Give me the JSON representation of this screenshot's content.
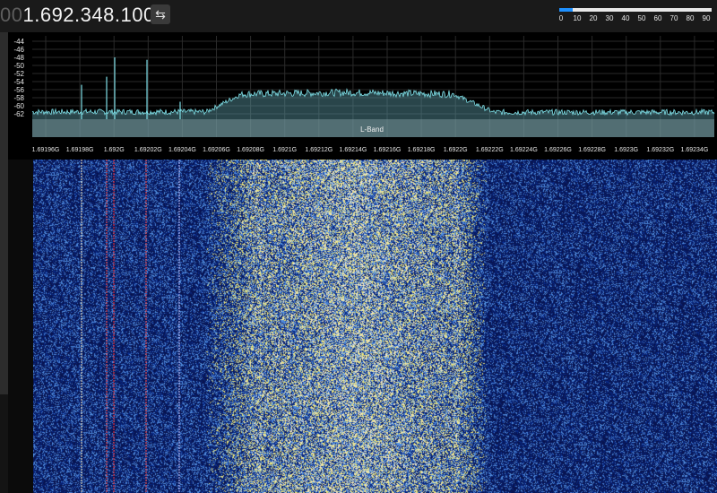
{
  "frequency": {
    "dim_digits": "00",
    "main_digits": "1.692.348.100"
  },
  "swap_button": {
    "glyph": "⇆",
    "icon": "swap-arrows-icon"
  },
  "volume": {
    "labels": [
      "0",
      "10",
      "20",
      "30",
      "40",
      "50",
      "60",
      "70",
      "80",
      "90"
    ],
    "level_fraction": 0.09,
    "fill_color": "#1e90ff"
  },
  "spectrum": {
    "y_ticks": [
      "-44",
      "-46",
      "-48",
      "-50",
      "-52",
      "-54",
      "-56",
      "-58",
      "-60",
      "-62"
    ],
    "x_ticks": [
      "1.69196G",
      "1.69198G",
      "1.692G",
      "1.69202G",
      "1.69204G",
      "1.69206G",
      "1.69208G",
      "1.6921G",
      "1.69212G",
      "1.69214G",
      "1.69216G",
      "1.69218G",
      "1.6922G",
      "1.69222G",
      "1.69224G",
      "1.69226G",
      "1.69228G",
      "1.6923G",
      "1.69232G",
      "1.69234G"
    ],
    "band_label": "L-Band",
    "trace_color": "#7fe0e8"
  },
  "waterfall": {
    "noise_color": "#0a1a5e"
  }
}
